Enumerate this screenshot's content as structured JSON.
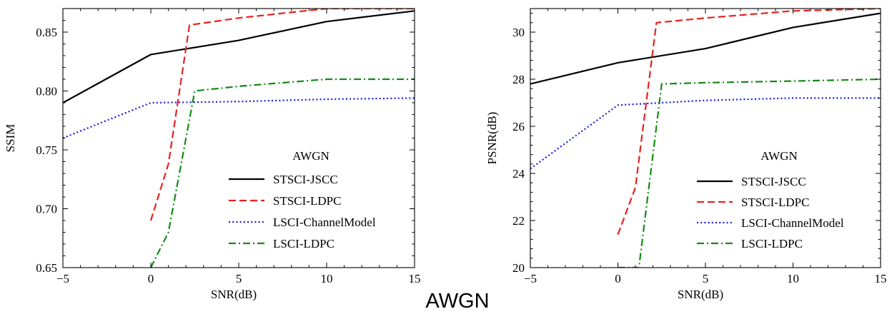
{
  "figure_title": "AWGN",
  "chart_data": [
    {
      "type": "line",
      "title": "",
      "xlabel": "SNR(dB)",
      "ylabel": "SSIM",
      "xlim": [
        -5,
        15
      ],
      "ylim": [
        0.65,
        0.87
      ],
      "xticks": [
        -5,
        0,
        5,
        10,
        15
      ],
      "yticks": [
        0.65,
        0.7,
        0.75,
        0.8,
        0.85
      ],
      "xtick_labels": [
        "−5",
        "0",
        "5",
        "10",
        "15"
      ],
      "ytick_labels": [
        "0.65",
        "0.70",
        "0.75",
        "0.80",
        "0.85"
      ],
      "grid": false,
      "legend": {
        "title": "AWGN",
        "position": "lower-right"
      },
      "series": [
        {
          "name": "STSCI-JSCC",
          "color": "#000000",
          "dash": "solid",
          "x": [
            -5,
            0,
            5,
            10,
            15
          ],
          "y": [
            0.79,
            0.831,
            0.843,
            0.859,
            0.868
          ]
        },
        {
          "name": "STSCI-LDPC",
          "color": "#e8201e",
          "dash": "dashed",
          "x": [
            0,
            1,
            2.2,
            5,
            10,
            15
          ],
          "y": [
            0.69,
            0.738,
            0.856,
            0.862,
            0.87,
            0.87
          ]
        },
        {
          "name": "LSCI-ChannelModel",
          "color": "#1a1ae6",
          "dash": "dotted",
          "x": [
            -5,
            0,
            5,
            10,
            15
          ],
          "y": [
            0.76,
            0.79,
            0.791,
            0.793,
            0.794
          ]
        },
        {
          "name": "LSCI-LDPC",
          "color": "#138a13",
          "dash": "dashdot",
          "x": [
            0,
            1,
            2.5,
            5,
            10,
            15
          ],
          "y": [
            0.65,
            0.68,
            0.8,
            0.804,
            0.81,
            0.81
          ]
        }
      ]
    },
    {
      "type": "line",
      "title": "",
      "xlabel": "SNR(dB)",
      "ylabel": "PSNR(dB)",
      "xlim": [
        -5,
        15
      ],
      "ylim": [
        20,
        31
      ],
      "xticks": [
        -5,
        0,
        5,
        10,
        15
      ],
      "yticks": [
        20,
        22,
        24,
        26,
        28,
        30
      ],
      "xtick_labels": [
        "−5",
        "0",
        "5",
        "10",
        "15"
      ],
      "ytick_labels": [
        "20",
        "22",
        "24",
        "26",
        "28",
        "30"
      ],
      "grid": false,
      "legend": {
        "title": "AWGN",
        "position": "lower-right"
      },
      "series": [
        {
          "name": "STSCI-JSCC",
          "color": "#000000",
          "dash": "solid",
          "x": [
            -5,
            0,
            5,
            10,
            15
          ],
          "y": [
            27.8,
            28.7,
            29.3,
            30.2,
            30.8
          ]
        },
        {
          "name": "STSCI-LDPC",
          "color": "#e8201e",
          "dash": "dashed",
          "x": [
            0,
            1,
            2.2,
            5,
            10,
            15
          ],
          "y": [
            21.4,
            23.4,
            30.4,
            30.6,
            30.9,
            31.0
          ]
        },
        {
          "name": "LSCI-ChannelModel",
          "color": "#1a1ae6",
          "dash": "dotted",
          "x": [
            -5,
            0,
            5,
            10,
            15
          ],
          "y": [
            24.2,
            26.9,
            27.1,
            27.2,
            27.2
          ]
        },
        {
          "name": "LSCI-LDPC",
          "color": "#138a13",
          "dash": "dashdot",
          "x": [
            0,
            1.2,
            2.5,
            5,
            10,
            15
          ],
          "y": [
            20.0,
            20.0,
            27.8,
            27.85,
            27.92,
            28.0
          ]
        }
      ]
    }
  ]
}
